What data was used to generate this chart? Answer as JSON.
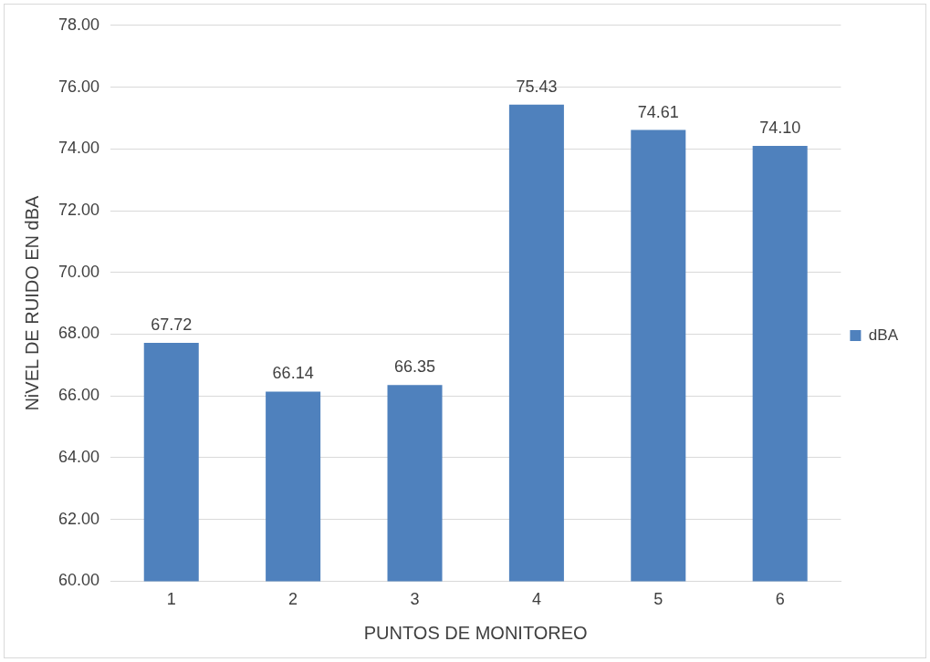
{
  "chart_data": {
    "type": "bar",
    "xlabel": "PUNTOS DE MONITOREO",
    "ylabel": "NiVEL DE RUIDO EN dBA",
    "categories": [
      "1",
      "2",
      "3",
      "4",
      "5",
      "6"
    ],
    "series": [
      {
        "name": "dBA",
        "color": "#4f81bd",
        "values": [
          67.72,
          66.14,
          66.35,
          75.43,
          74.61,
          74.1
        ],
        "value_labels": [
          "67.72",
          "66.14",
          "66.35",
          "75.43",
          "74.61",
          "74.10"
        ]
      }
    ],
    "ylim": [
      60,
      78
    ],
    "yticks": [
      {
        "value": 60,
        "label": "60.00"
      },
      {
        "value": 62,
        "label": "62.00"
      },
      {
        "value": 64,
        "label": "64.00"
      },
      {
        "value": 66,
        "label": "66.00"
      },
      {
        "value": 68,
        "label": "68.00"
      },
      {
        "value": 70,
        "label": "70.00"
      },
      {
        "value": 72,
        "label": "72.00"
      },
      {
        "value": 74,
        "label": "74.00"
      },
      {
        "value": 76,
        "label": "76.00"
      },
      {
        "value": 78,
        "label": "78.00"
      }
    ],
    "grid": "y",
    "legend": "right"
  }
}
